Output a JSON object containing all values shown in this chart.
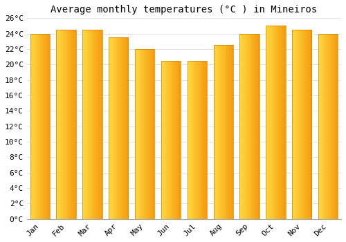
{
  "months": [
    "Jan",
    "Feb",
    "Mar",
    "Apr",
    "May",
    "Jun",
    "Jul",
    "Aug",
    "Sep",
    "Oct",
    "Nov",
    "Dec"
  ],
  "values": [
    24.0,
    24.5,
    24.5,
    23.5,
    22.0,
    20.5,
    20.5,
    22.5,
    24.0,
    25.0,
    24.5,
    24.0
  ],
  "bar_color_left": "#FFD04A",
  "bar_color_right": "#F5A000",
  "bar_edge_color": "#D08000",
  "title": "Average monthly temperatures (°C ) in Mineiros",
  "ylim": [
    0,
    26
  ],
  "ytick_step": 2,
  "background_color": "#ffffff",
  "plot_bg_color": "#f8f8f8",
  "grid_color": "#dddddd",
  "title_fontsize": 10,
  "tick_fontsize": 8,
  "font_family": "monospace"
}
